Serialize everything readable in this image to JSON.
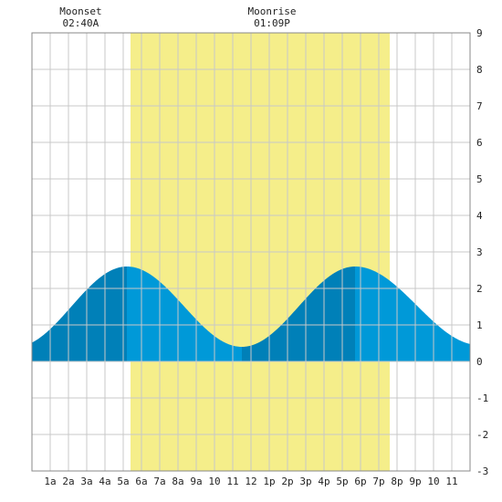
{
  "chart_data": {
    "type": "area",
    "title": "",
    "xlabel": "",
    "ylabel": "",
    "x_ticks": [
      "1a",
      "2a",
      "3a",
      "4a",
      "5a",
      "6a",
      "7a",
      "8a",
      "9a",
      "10",
      "11",
      "12",
      "1p",
      "2p",
      "3p",
      "4p",
      "5p",
      "6p",
      "7p",
      "8p",
      "9p",
      "10",
      "11"
    ],
    "xlim": [
      0,
      24
    ],
    "ylim": [
      -3,
      9
    ],
    "y_ticks": [
      -3,
      -2,
      -1,
      0,
      1,
      2,
      3,
      4,
      5,
      6,
      7,
      8,
      9
    ],
    "grid": true,
    "daylight": {
      "start_hour": 5.4,
      "end_hour": 19.6,
      "color": "#f5ee8a"
    },
    "moon": [
      {
        "label": "Moonset",
        "time": "02:40A",
        "hour": 2.67
      },
      {
        "label": "Moonrise",
        "time": "01:09P",
        "hour": 13.15
      }
    ],
    "tide": {
      "extremes": [
        {
          "hour": -0.9,
          "height": 0.4
        },
        {
          "hour": 5.2,
          "height": 2.6
        },
        {
          "hour": 11.5,
          "height": 0.4
        },
        {
          "hour": 17.7,
          "height": 2.6
        },
        {
          "hour": 24.5,
          "height": 0.45
        }
      ],
      "bands": [
        {
          "from": 0,
          "to": 5.2,
          "color": "#0080b8"
        },
        {
          "from": 5.2,
          "to": 11.5,
          "color": "#0099d8"
        },
        {
          "from": 11.5,
          "to": 17.7,
          "color": "#0080b8"
        },
        {
          "from": 17.7,
          "to": 24,
          "color": "#0099d8"
        }
      ]
    }
  }
}
